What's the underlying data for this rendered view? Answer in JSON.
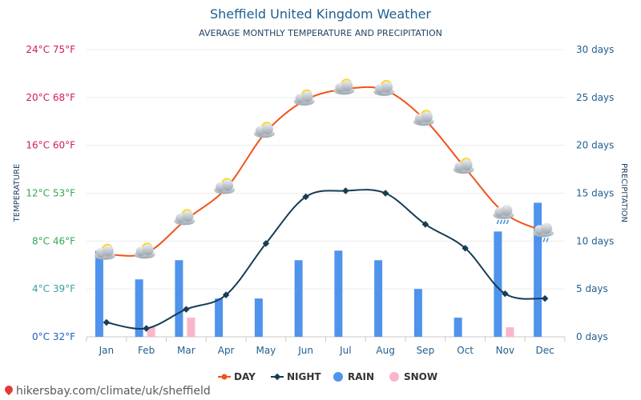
{
  "title": "Sheffield United Kingdom Weather",
  "subtitle": "AVERAGE MONTHLY TEMPERATURE AND PRECIPITATION",
  "footer": "hikersbay.com/climate/uk/sheffield",
  "chart_data": {
    "type": "line",
    "categories": [
      "Jan",
      "Feb",
      "Mar",
      "Apr",
      "May",
      "Jun",
      "Jul",
      "Aug",
      "Sep",
      "Oct",
      "Nov",
      "Dec"
    ],
    "series": [
      {
        "name": "DAY",
        "kind": "line",
        "axis": "temperature",
        "color": "#f0531c",
        "values": [
          6.9,
          7.0,
          9.8,
          12.4,
          17.1,
          19.8,
          20.7,
          20.6,
          18.1,
          14.1,
          10.3,
          8.8
        ]
      },
      {
        "name": "NIGHT",
        "kind": "line",
        "axis": "temperature",
        "color": "#163d53",
        "values": [
          1.2,
          0.7,
          2.3,
          3.5,
          7.8,
          11.7,
          12.2,
          12.0,
          9.4,
          7.4,
          3.6,
          3.2
        ]
      },
      {
        "name": "RAIN",
        "kind": "bar",
        "axis": "precipitation",
        "color": "#4f93ec",
        "values": [
          9,
          6,
          8,
          4,
          4,
          8,
          9,
          8,
          5,
          2,
          11,
          14
        ]
      },
      {
        "name": "SNOW",
        "kind": "bar",
        "axis": "precipitation",
        "color": "#f9b6c8",
        "values": [
          0,
          1,
          2,
          0,
          0,
          0,
          0,
          0,
          0,
          0,
          1,
          0
        ]
      }
    ],
    "weather_icons": [
      "sun-cloud",
      "sun-cloud",
      "sun-cloud",
      "sun-cloud",
      "sun-cloud",
      "sun-cloud",
      "sun-cloud",
      "sun-cloud",
      "sun-cloud",
      "sun-cloud",
      "rain-cloud",
      "rain-cloud"
    ],
    "y_left": {
      "label": "TEMPERATURE",
      "range": [
        0,
        24
      ],
      "ticks": [
        {
          "value": 0,
          "label": "0°C 32°F",
          "color": "#1f5fbf"
        },
        {
          "value": 4,
          "label": "4°C 39°F",
          "color": "#3aa0a0"
        },
        {
          "value": 8,
          "label": "8°C 46°F",
          "color": "#34a853"
        },
        {
          "value": 12,
          "label": "12°C 53°F",
          "color": "#34a853"
        },
        {
          "value": 16,
          "label": "16°C 60°F",
          "color": "#d6175f"
        },
        {
          "value": 20,
          "label": "20°C 68°F",
          "color": "#d6175f"
        },
        {
          "value": 24,
          "label": "24°C 75°F",
          "color": "#d6175f"
        }
      ]
    },
    "y_right": {
      "label": "PRECIPITATION",
      "range": [
        0,
        30
      ],
      "color": "#1f5f8f",
      "ticks": [
        {
          "value": 0,
          "label": "0 days"
        },
        {
          "value": 5,
          "label": "5 days"
        },
        {
          "value": 10,
          "label": "10 days"
        },
        {
          "value": 15,
          "label": "15 days"
        },
        {
          "value": 20,
          "label": "20 days"
        },
        {
          "value": 25,
          "label": "25 days"
        },
        {
          "value": 30,
          "label": "30 days"
        }
      ]
    },
    "legend": {
      "placement": "bottom",
      "items": [
        {
          "name": "DAY",
          "symbol": "line-dot",
          "color": "#f0531c"
        },
        {
          "name": "NIGHT",
          "symbol": "line-diamond",
          "color": "#163d53"
        },
        {
          "name": "RAIN",
          "symbol": "circle",
          "color": "#4f93ec"
        },
        {
          "name": "SNOW",
          "symbol": "circle",
          "color": "#f9b6c8"
        }
      ]
    }
  }
}
